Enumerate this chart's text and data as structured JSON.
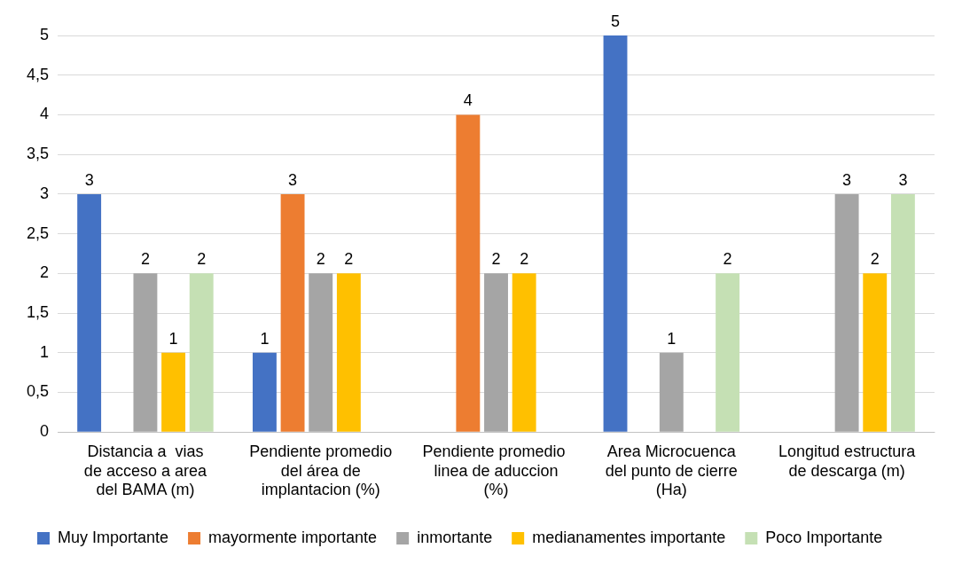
{
  "chart_data": {
    "type": "bar",
    "categories": [
      "Distancia a  vias de acceso a area del BAMA (m)",
      "Pendiente promedio del área de implantacion (%)",
      "Pendiente promedio  linea de aduccion (%)",
      "Area Microcuenca del punto de cierre (Ha)",
      "Longitud estructura de descarga (m)"
    ],
    "series": [
      {
        "name": "Muy Importante",
        "color": "#4472c4",
        "values": [
          3,
          1,
          null,
          5,
          null
        ]
      },
      {
        "name": "mayormente importante",
        "color": "#ed7d31",
        "values": [
          null,
          3,
          4,
          null,
          null
        ]
      },
      {
        "name": "inmortante",
        "color": "#a5a5a5",
        "values": [
          2,
          2,
          2,
          1,
          3
        ]
      },
      {
        "name": "medianamentes importante",
        "color": "#ffc000",
        "values": [
          1,
          2,
          2,
          null,
          2
        ]
      },
      {
        "name": "Poco Importante",
        "color": "#c5e0b4",
        "values": [
          2,
          null,
          null,
          2,
          3
        ]
      }
    ],
    "ylim": [
      0,
      5
    ],
    "yticks": [
      0,
      {
        "value": 0.5,
        "label": "0,5"
      },
      1,
      {
        "value": 1.5,
        "label": "1,5"
      },
      2,
      {
        "value": 2.5,
        "label": "2,5"
      },
      3,
      {
        "value": 3.5,
        "label": "3,5"
      },
      4,
      {
        "value": 4.5,
        "label": "4,5"
      },
      5
    ],
    "grid": "y",
    "legend": "bottom",
    "data_labels": true
  }
}
